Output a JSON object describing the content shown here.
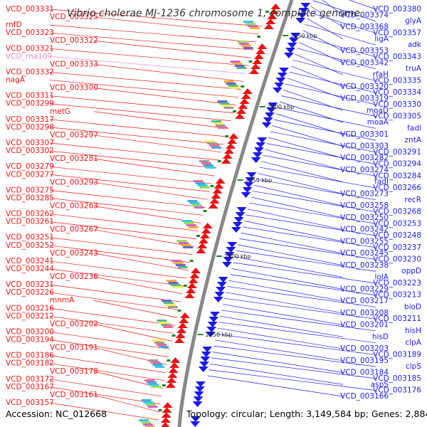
{
  "title": "Vibrio cholerae MJ-1236 chromosome 1, complete genome",
  "footer": {
    "accession": "Accession: NC_012668",
    "summary": "Topology: circular; Length: 3,149,584 bp; Genes: 2,884"
  },
  "colors": {
    "left_strand": "#ee1111",
    "right_strand": "#1a1aee",
    "pseudo": "#ee88cc",
    "backbone": "#888888",
    "tick": "#228822"
  },
  "ticks": [
    "2650 kbp",
    "2600 kbp",
    "2550 kbp",
    "2500 kbp",
    "2450 kbp"
  ],
  "left_labels": [
    "VCD_003331",
    "VCD_003325",
    "rnfD",
    "VCD_003323",
    "VCD_003322",
    "VCD_003321",
    "VCD_rna109",
    "VCD_003333",
    "VCD_003332",
    "nagA",
    "VCD_003300",
    "VCD_003311",
    "VCD_003299",
    "metG",
    "VCD_003317",
    "VCD_003298",
    "VCD_003297",
    "VCD_003307",
    "VCD_003302",
    "VCD_003281",
    "VCD_003279",
    "VCD_003277",
    "VCD_003293",
    "VCD_003275",
    "VCD_003285",
    "VCD_003263",
    "VCD_003262",
    "VCD_003261",
    "VCD_003267",
    "VCD_003251",
    "VCD_003252",
    "VCD_003243",
    "VCD_003241",
    "VCD_003244",
    "VCD_003236",
    "VCD_003231",
    "VCD_003226",
    "mnmA",
    "VCD_003216",
    "VCD_003212",
    "VCD_003202",
    "VCD_003200",
    "VCD_003194",
    "VCD_003191",
    "VCD_003186",
    "VCD_003182",
    "VCD_003178",
    "VCD_003172",
    "VCD_003167",
    "VCD_003161",
    "VCD_003157"
  ],
  "right_labels": [
    "VCD_003380",
    "VCD_003374",
    "glyA",
    "VCD_003368",
    "VCD_003357",
    "ligA",
    "adk",
    "VCD_003353",
    "VCD_003343",
    "VCD_003342",
    "truA",
    "rfaH",
    "VCD_003335",
    "VCD_003320",
    "VCD_003334",
    "VCD_003319",
    "VCD_003330",
    "moaD",
    "VCD_003305",
    "moaA",
    "fadI",
    "VCD_003301",
    "zntA",
    "VCD_003303",
    "VCD_003291",
    "VCD_003282",
    "VCD_003294",
    "VCD_003274",
    "VCD_003284",
    "fadJ",
    "VCD_003266",
    "VCD_003273",
    "recR",
    "VCD_003258",
    "VCD_003268",
    "VCD_003250",
    "VCD_003253",
    "VCD_003242",
    "VCD_003248",
    "VCD_003255",
    "VCD_003237",
    "VCD_003245",
    "VCD_003230",
    "VCD_003238",
    "oppD",
    "lolA",
    "VCD_003223",
    "VCD_003229",
    "VCD_003213",
    "VCD_003217",
    "bioD",
    "VCD_003208",
    "VCD_003211",
    "VCD_003201",
    "hisH",
    "hisD",
    "clpA",
    "VCD_003203",
    "VCD_003189",
    "VCD_003195",
    "clpS",
    "VCD_003184",
    "VCD_003185",
    "aspS",
    "VCD_003176",
    "VCD_003166"
  ]
}
